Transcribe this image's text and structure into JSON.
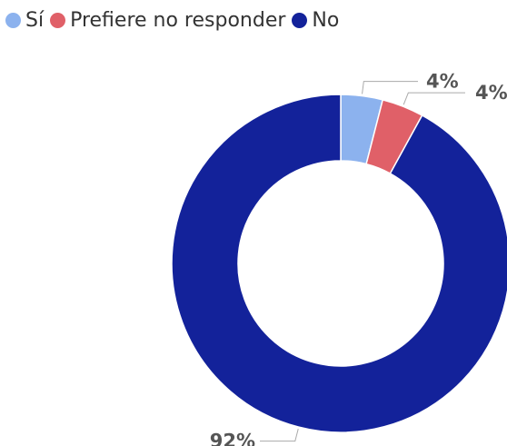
{
  "chart_data": {
    "type": "pie",
    "variant": "donut",
    "legend_position": "top-left",
    "categories": [
      "Sí",
      "Prefiere no responder",
      "No"
    ],
    "values": [
      4,
      4,
      92
    ],
    "labels": [
      "4%",
      "4%",
      "92%"
    ],
    "colors": [
      "#8CB2EE",
      "#E06068",
      "#13229A"
    ]
  }
}
